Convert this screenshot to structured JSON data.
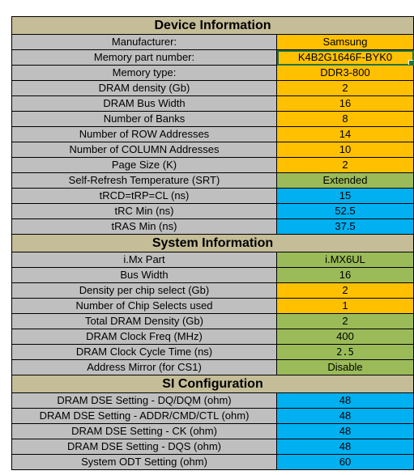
{
  "device": {
    "title": "Device Information",
    "rows": [
      {
        "label": "Manufacturer:",
        "value": "Samsung",
        "color": "orange"
      },
      {
        "label": "Memory part number:",
        "value": "K4B2G1646F-BYK0",
        "color": "orange"
      },
      {
        "label": "Memory type:",
        "value": "DDR3-800",
        "color": "orange"
      },
      {
        "label": "DRAM density (Gb)",
        "value": "2",
        "color": "orange"
      },
      {
        "label": "DRAM Bus Width",
        "value": "16",
        "color": "orange"
      },
      {
        "label": "Number of Banks",
        "value": "8",
        "color": "orange"
      },
      {
        "label": "Number of ROW Addresses",
        "value": "14",
        "color": "orange"
      },
      {
        "label": "Number of COLUMN Addresses",
        "value": "10",
        "color": "orange"
      },
      {
        "label": "Page Size (K)",
        "value": "2",
        "color": "orange"
      },
      {
        "label": "Self-Refresh Temperature (SRT)",
        "value": "Extended",
        "color": "green"
      },
      {
        "label": "tRCD=tRP=CL (ns)",
        "value": "15",
        "color": "blue"
      },
      {
        "label": "tRC Min (ns)",
        "value": "52.5",
        "color": "blue"
      },
      {
        "label": "tRAS Min (ns)",
        "value": "37.5",
        "color": "blue"
      }
    ]
  },
  "system": {
    "title": "System Information",
    "rows": [
      {
        "label": "i.Mx Part",
        "value": "i.MX6UL",
        "color": "green"
      },
      {
        "label": "Bus Width",
        "value": "16",
        "color": "green"
      },
      {
        "label": "Density per chip select (Gb)",
        "value": "2",
        "color": "orange"
      },
      {
        "label": "Number of Chip Selects used",
        "value": "1",
        "color": "orange"
      },
      {
        "label": "Total DRAM Density (Gb)",
        "value": "2",
        "color": "green"
      },
      {
        "label": "DRAM Clock Freq (MHz)",
        "value": "400",
        "color": "green"
      },
      {
        "label": "DRAM Clock Cycle Time (ns)",
        "value": "2.5",
        "color": "green"
      },
      {
        "label": "Address Mirror (for CS1)",
        "value": "Disable",
        "color": "green"
      }
    ]
  },
  "si": {
    "title": "SI Configuration",
    "rows": [
      {
        "label": "DRAM DSE Setting - DQ/DQM (ohm)",
        "value": "48",
        "color": "blue"
      },
      {
        "label": "DRAM DSE Setting - ADDR/CMD/CTL (ohm)",
        "value": "48",
        "color": "blue"
      },
      {
        "label": "DRAM DSE Setting - CK (ohm)",
        "value": "48",
        "color": "blue"
      },
      {
        "label": "DRAM DSE Setting - DQS (ohm)",
        "value": "48",
        "color": "blue"
      },
      {
        "label": "System ODT Setting (ohm)",
        "value": "60",
        "color": "blue"
      }
    ]
  },
  "colors": {
    "header": "#c4bd97",
    "label": "#bfbfbf",
    "orange": "#ffc000",
    "blue": "#00b0f0",
    "green": "#9bbb59"
  }
}
